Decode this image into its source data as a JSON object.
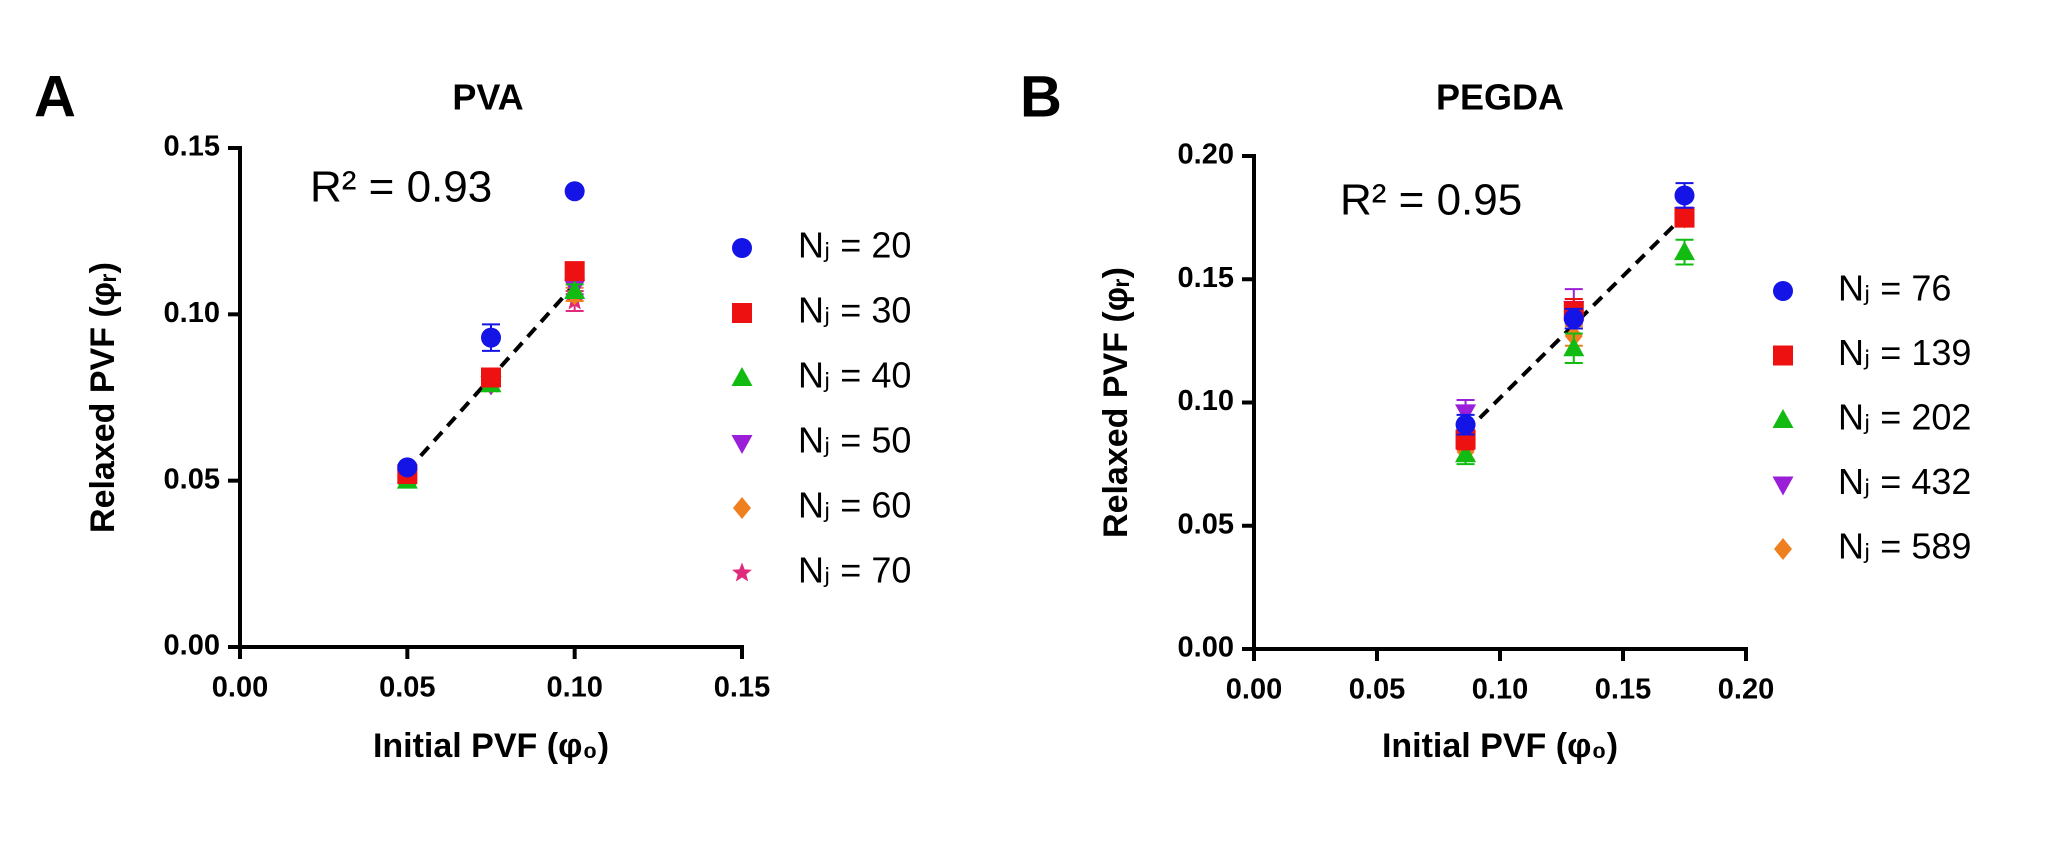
{
  "chart_data": [
    {
      "type": "scatter",
      "label": "A",
      "title": "PVA",
      "annotation": "R² = 0.93",
      "x_label": "Initial PVF (φ₀)",
      "y_label": "Relaxed PVF (φᵣ)",
      "x": [
        0.05,
        0.075,
        0.1
      ],
      "xlim": [
        0,
        0.15
      ],
      "ylim": [
        0,
        0.15
      ],
      "xticks": [
        {
          "value": 0,
          "label": "0.00"
        },
        0.05,
        {
          "value": 0.1,
          "label": "0.10"
        },
        0.15
      ],
      "yticks": [
        {
          "value": 0,
          "label": "0.00"
        },
        0.05,
        {
          "value": 0.1,
          "label": "0.10"
        },
        0.15
      ],
      "fit_line": {
        "x": [
          0.05,
          0.1
        ],
        "y": [
          0.053,
          0.109
        ]
      },
      "series": [
        {
          "name": "Nⱼ = 20",
          "color": "#1414e6",
          "marker": "circle",
          "values": [
            0.054,
            0.093,
            0.137
          ],
          "errors": [
            0.001,
            0.004,
            0.001
          ]
        },
        {
          "name": "Nⱼ = 30",
          "color": "#ee1111",
          "marker": "square",
          "values": [
            0.052,
            0.081,
            0.113
          ],
          "errors": [
            0.001,
            0.002,
            0.002
          ]
        },
        {
          "name": "Nⱼ = 40",
          "color": "#11bb11",
          "marker": "triangle",
          "values": [
            0.05,
            0.079,
            0.107
          ],
          "errors": [
            0.001,
            0.002,
            0.002
          ]
        },
        {
          "name": "Nⱼ = 50",
          "color": "#9b1fd9",
          "marker": "triangle-down",
          "values": [
            0.051,
            0.079,
            0.108
          ],
          "errors": [
            0.001,
            0.002,
            0.002
          ]
        },
        {
          "name": "Nⱼ = 60",
          "color": "#ee8020",
          "marker": "diamond",
          "values": [
            0.051,
            0.079,
            0.106
          ],
          "errors": [
            0.001,
            0.002,
            0.002
          ]
        },
        {
          "name": "Nⱼ = 70",
          "color": "#e02a7e",
          "marker": "star",
          "values": [
            0.051,
            0.079,
            0.104
          ],
          "errors": [
            0.001,
            0.002,
            0.003
          ]
        }
      ]
    },
    {
      "type": "scatter",
      "label": "B",
      "title": "PEGDA",
      "annotation": "R² = 0.95",
      "x_label": "Initial PVF (φ₀)",
      "y_label": "Relaxed PVF (φᵣ)",
      "x": [
        0.086,
        0.13,
        0.175
      ],
      "xlim": [
        0,
        0.2
      ],
      "ylim": [
        0,
        0.2
      ],
      "xticks": [
        {
          "value": 0,
          "label": "0.00"
        },
        0.05,
        {
          "value": 0.1,
          "label": "0.10"
        },
        0.15,
        {
          "value": 0.2,
          "label": "0.20"
        }
      ],
      "yticks": [
        {
          "value": 0,
          "label": "0.00"
        },
        0.05,
        {
          "value": 0.1,
          "label": "0.10"
        },
        0.15,
        {
          "value": 0.2,
          "label": "0.20"
        }
      ],
      "fit_line": {
        "x": [
          0.086,
          0.175
        ],
        "y": [
          0.088,
          0.176
        ]
      },
      "series": [
        {
          "name": "Nⱼ = 76",
          "color": "#1414e6",
          "marker": "circle",
          "values": [
            0.091,
            0.134,
            0.184
          ],
          "errors": [
            0.004,
            0.004,
            0.005
          ]
        },
        {
          "name": "Nⱼ = 139",
          "color": "#ee1111",
          "marker": "square",
          "values": [
            0.085,
            0.137,
            0.175
          ],
          "errors": [
            0.004,
            0.005,
            0.003
          ]
        },
        {
          "name": "Nⱼ = 202",
          "color": "#11bb11",
          "marker": "triangle",
          "values": [
            0.079,
            0.122,
            0.161
          ],
          "errors": [
            0.004,
            0.006,
            0.005
          ]
        },
        {
          "name": "Nⱼ = 432",
          "color": "#9b1fd9",
          "marker": "triangle-down",
          "values": [
            0.096,
            0.138,
            0.176
          ],
          "errors": [
            0.005,
            0.008,
            0.003
          ]
        },
        {
          "name": "Nⱼ = 589",
          "color": "#ee8020",
          "marker": "diamond",
          "values": [
            0.08,
            0.127,
            0.175
          ],
          "errors": [
            0.003,
            0.004,
            0.003
          ]
        }
      ]
    }
  ]
}
